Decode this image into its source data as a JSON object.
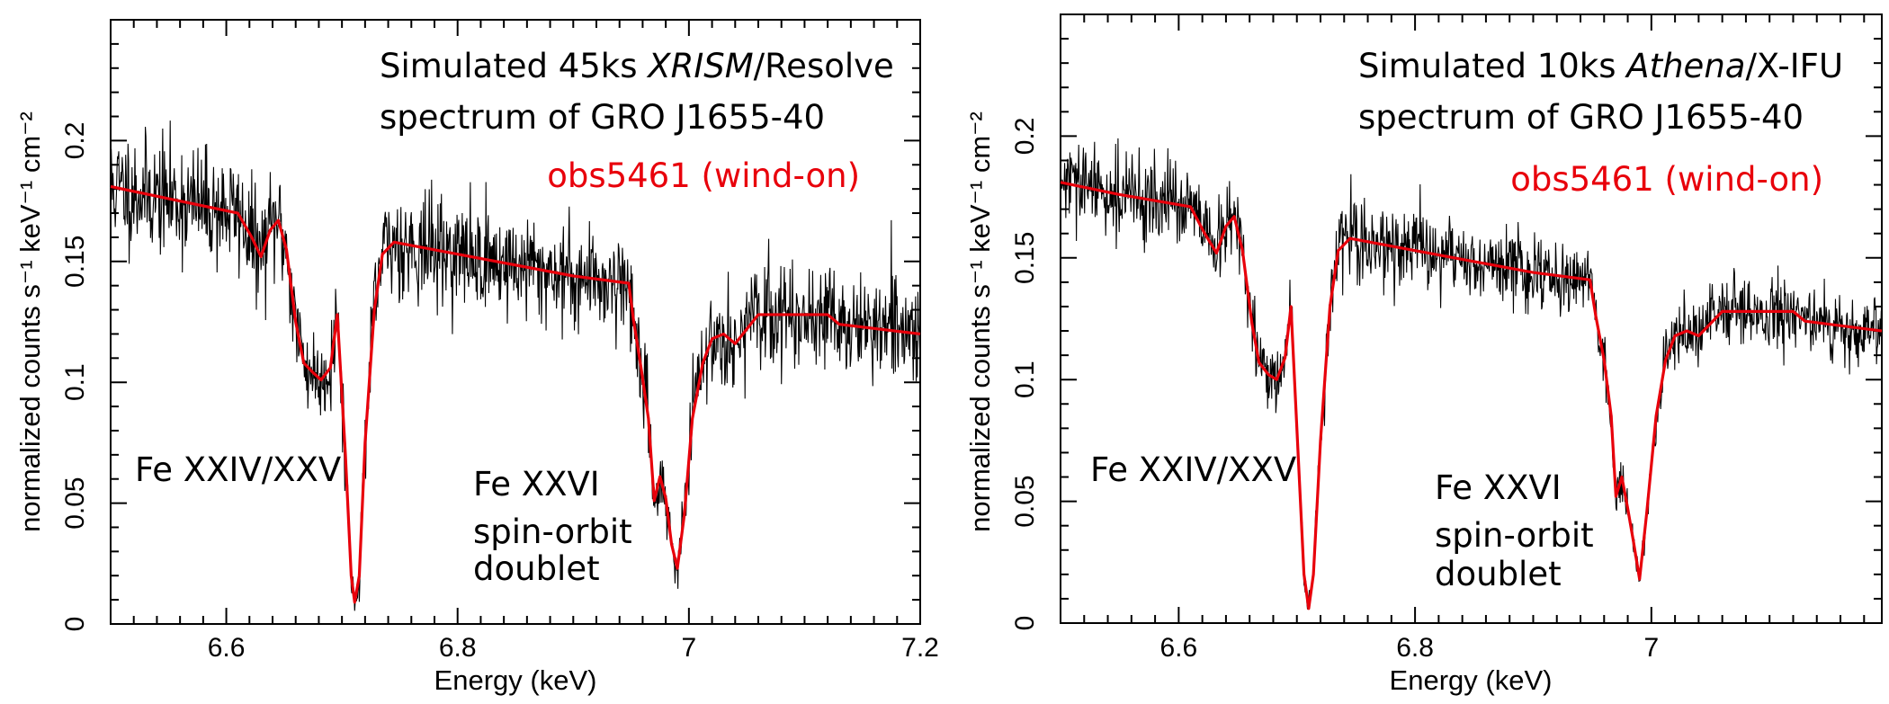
{
  "chart_data": [
    {
      "type": "line",
      "panel": "left",
      "title_line1_prefix": "Simulated 45ks ",
      "title_line1_italic": "XRISM",
      "title_line1_suffix": "/Resolve",
      "title_line2": "spectrum of GRO J1655-40",
      "observation_label": "obs5461 (wind-on)",
      "xlabel": "Energy (keV)",
      "ylabel": "normalized counts s⁻¹ keV⁻¹ cm⁻²",
      "xlim": [
        6.5,
        7.2
      ],
      "ylim": [
        0,
        0.25
      ],
      "xticks": [
        6.6,
        6.8,
        7.0,
        7.2
      ],
      "xtick_labels": [
        "6.6",
        "6.8",
        "7",
        "7.2"
      ],
      "yticks": [
        0,
        0.05,
        0.1,
        0.15,
        0.2
      ],
      "ytick_labels": [
        "0",
        "0.05",
        "0.1",
        "0.15",
        "0.2"
      ],
      "annotations": {
        "fe24_25": "Fe XXIV/XXV",
        "fe26_l1": "Fe XXVI",
        "fe26_l2": "spin-orbit",
        "fe26_l3": "doublet"
      },
      "noise_amplitude": 0.011,
      "series": [
        {
          "name": "model",
          "color": "#e8000b",
          "x": [
            6.5,
            6.55,
            6.61,
            6.622,
            6.63,
            6.638,
            6.645,
            6.652,
            6.66,
            6.667,
            6.675,
            6.682,
            6.69,
            6.696,
            6.703,
            6.708,
            6.711,
            6.715,
            6.72,
            6.728,
            6.735,
            6.745,
            6.8,
            6.9,
            6.948,
            6.952,
            6.958,
            6.965,
            6.97,
            6.975,
            6.98,
            6.985,
            6.99,
            6.996,
            7.003,
            7.012,
            7.02,
            7.03,
            7.04,
            7.06,
            7.12,
            7.13,
            7.2
          ],
          "y": [
            0.181,
            0.176,
            0.17,
            0.16,
            0.152,
            0.163,
            0.167,
            0.155,
            0.125,
            0.108,
            0.104,
            0.101,
            0.106,
            0.128,
            0.07,
            0.02,
            0.009,
            0.02,
            0.075,
            0.13,
            0.153,
            0.158,
            0.153,
            0.144,
            0.141,
            0.126,
            0.108,
            0.085,
            0.051,
            0.061,
            0.052,
            0.033,
            0.023,
            0.045,
            0.085,
            0.108,
            0.118,
            0.12,
            0.116,
            0.128,
            0.128,
            0.124,
            0.12
          ]
        }
      ]
    },
    {
      "type": "line",
      "panel": "right",
      "title_line1_prefix": "Simulated 10ks ",
      "title_line1_italic": "Athena",
      "title_line1_suffix": "/X-IFU",
      "title_line2": "spectrum of GRO J1655-40",
      "observation_label": "obs5461 (wind-on)",
      "xlabel": "Energy (keV)",
      "ylabel": "normalized counts s⁻¹ keV⁻¹ cm⁻²",
      "xlim": [
        6.5,
        7.2
      ],
      "ylim": [
        0,
        0.25
      ],
      "xticks": [
        6.6,
        6.8,
        7.0
      ],
      "xtick_labels": [
        "6.6",
        "6.8",
        "7"
      ],
      "yticks": [
        0,
        0.05,
        0.1,
        0.15,
        0.2
      ],
      "ytick_labels": [
        "0",
        "0.05",
        "0.1",
        "0.15",
        "0.2"
      ],
      "annotations": {
        "fe24_25": "Fe XXIV/XXV",
        "fe26_l1": "Fe XXVI",
        "fe26_l2": "spin-orbit",
        "fe26_l3": "doublet"
      },
      "noise_amplitude": 0.008,
      "series": [
        {
          "name": "model",
          "color": "#e8000b",
          "x": [
            6.5,
            6.55,
            6.61,
            6.622,
            6.632,
            6.64,
            6.647,
            6.654,
            6.662,
            6.668,
            6.676,
            6.683,
            6.69,
            6.695,
            6.701,
            6.706,
            6.71,
            6.714,
            6.72,
            6.728,
            6.735,
            6.745,
            6.8,
            6.9,
            6.948,
            6.953,
            6.96,
            6.966,
            6.97,
            6.975,
            6.98,
            6.985,
            6.99,
            6.996,
            7.004,
            7.012,
            7.02,
            7.03,
            7.04,
            7.06,
            7.12,
            7.13,
            7.2
          ],
          "y": [
            0.181,
            0.176,
            0.171,
            0.16,
            0.152,
            0.163,
            0.167,
            0.153,
            0.123,
            0.107,
            0.102,
            0.1,
            0.109,
            0.13,
            0.07,
            0.02,
            0.006,
            0.02,
            0.075,
            0.13,
            0.153,
            0.158,
            0.153,
            0.144,
            0.141,
            0.126,
            0.108,
            0.085,
            0.052,
            0.06,
            0.047,
            0.033,
            0.018,
            0.045,
            0.085,
            0.108,
            0.118,
            0.12,
            0.118,
            0.128,
            0.128,
            0.124,
            0.12
          ]
        }
      ]
    }
  ]
}
